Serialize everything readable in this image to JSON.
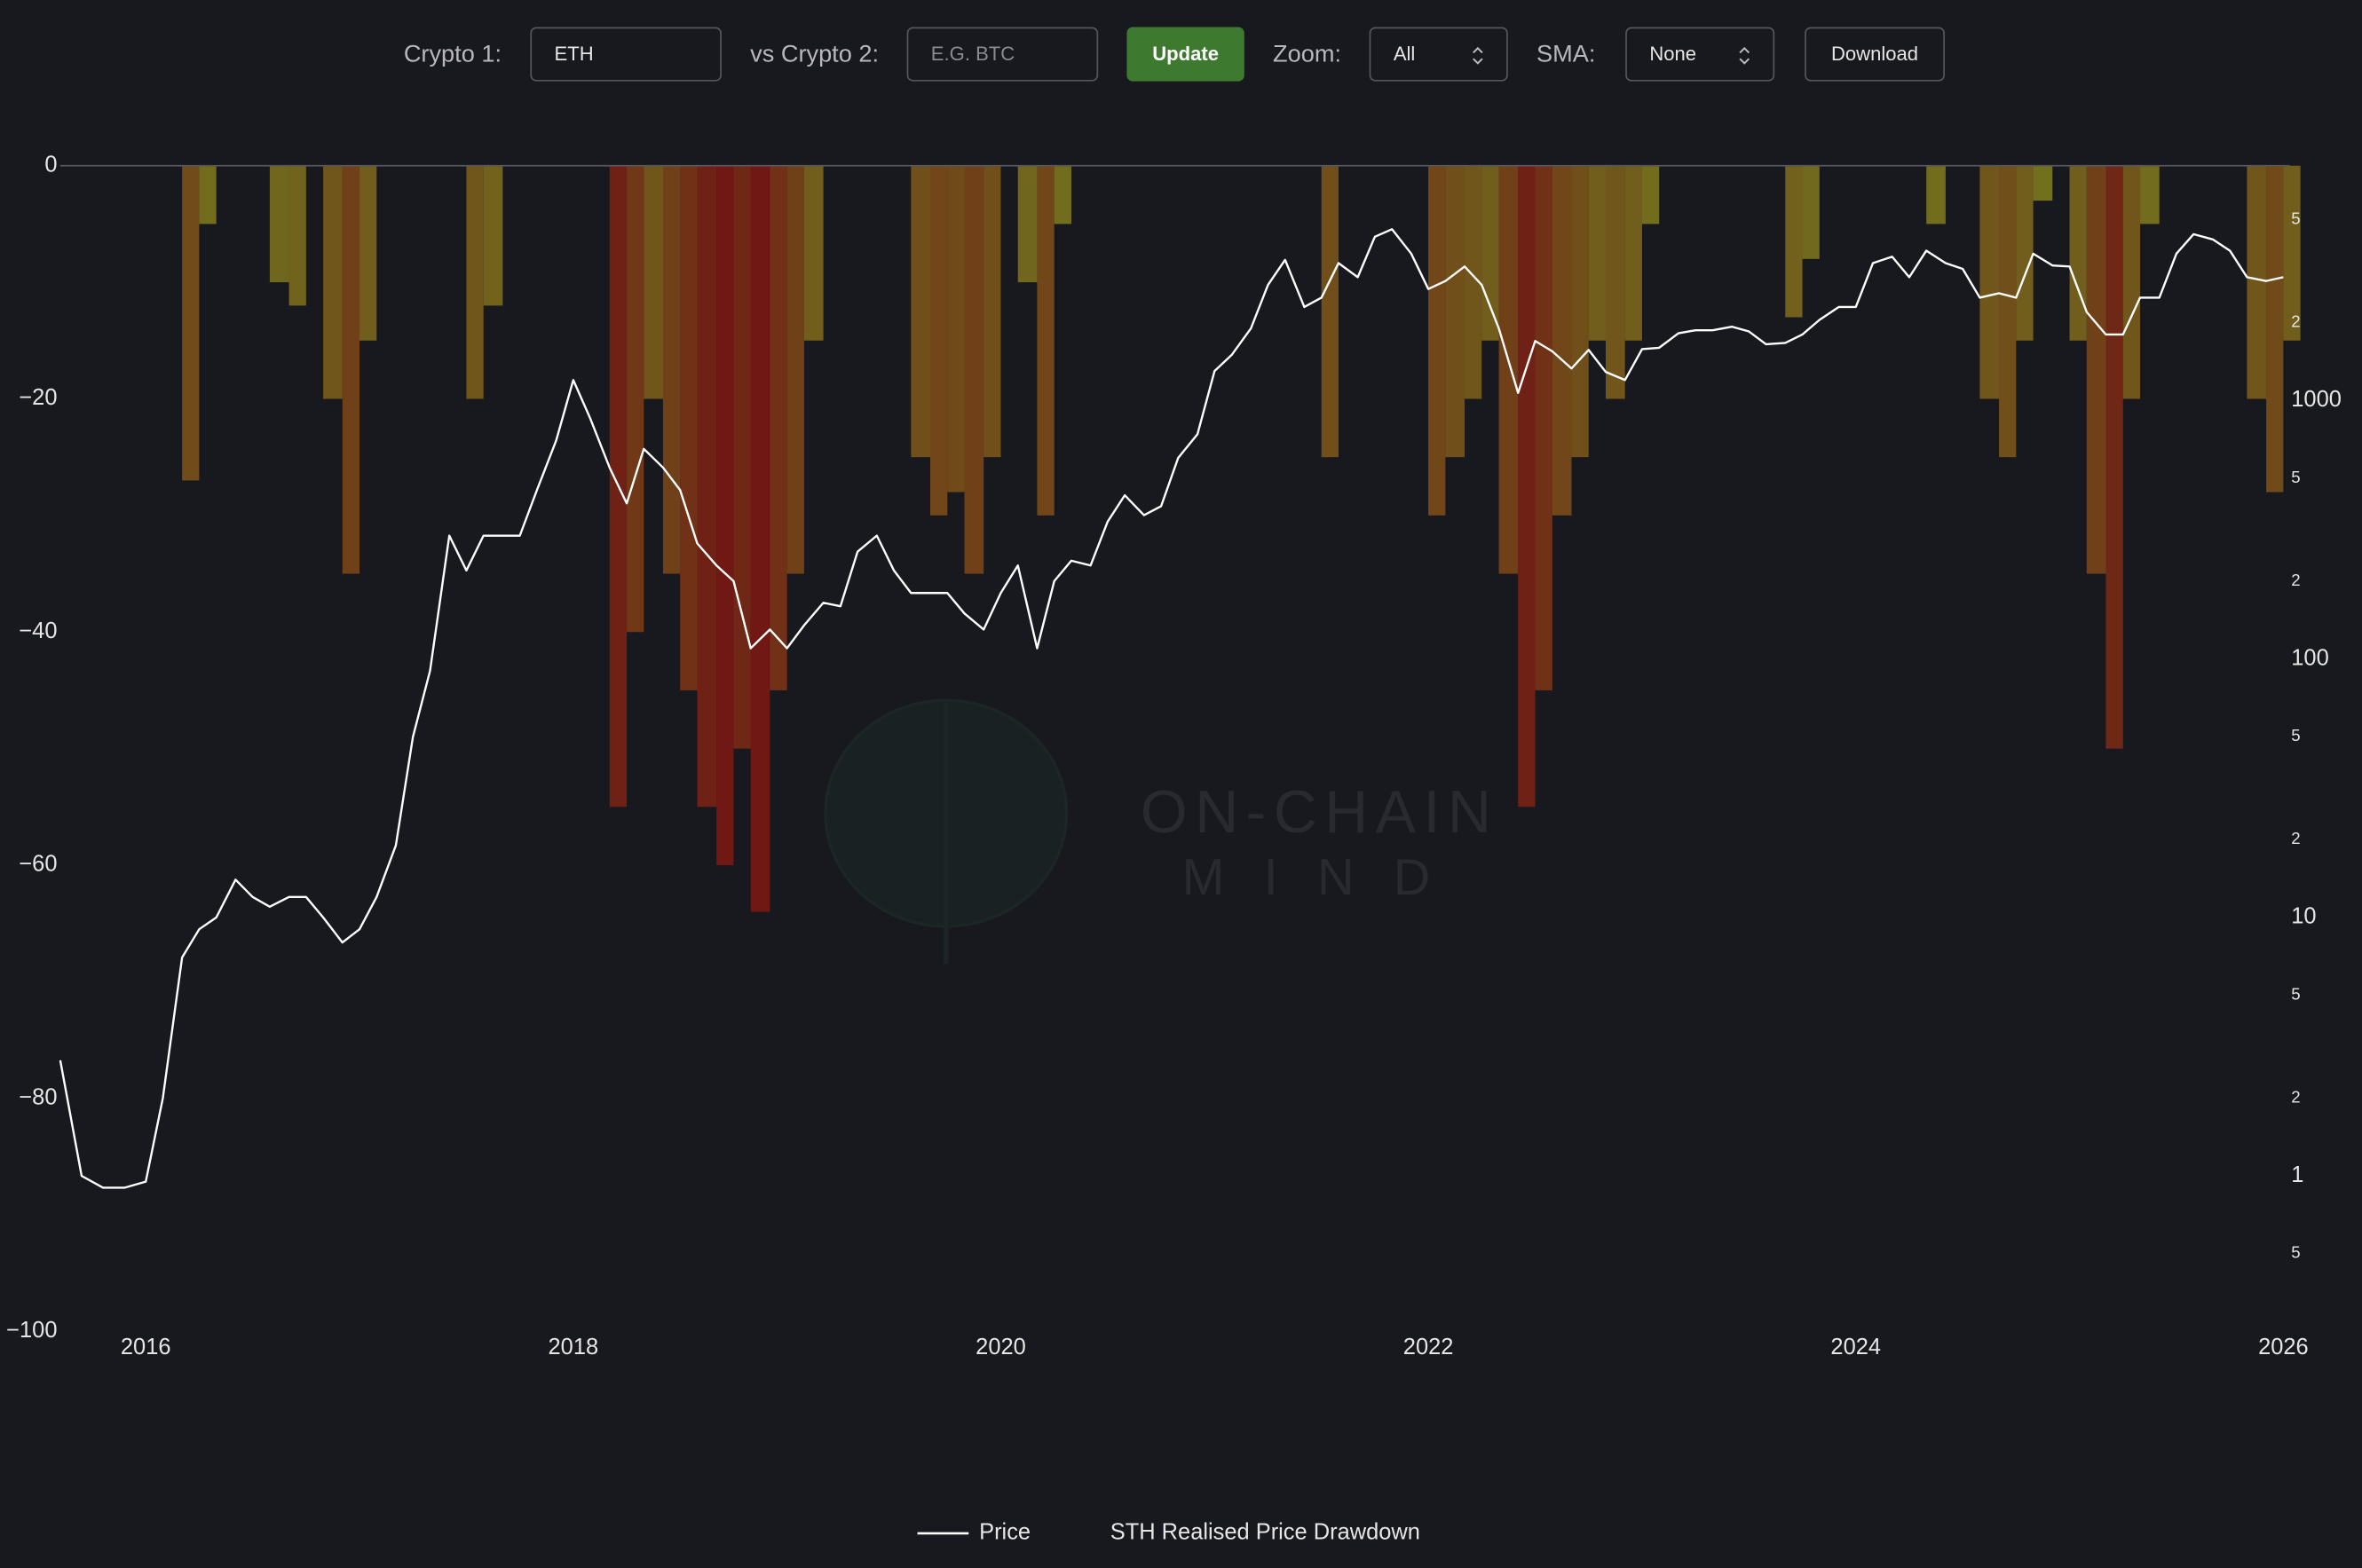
{
  "controls": {
    "crypto1_label": "Crypto 1:",
    "crypto1_value": "ETH",
    "crypto2_label": "vs Crypto 2:",
    "crypto2_placeholder": "E.G. BTC",
    "update_button": "Update",
    "zoom_label": "Zoom:",
    "zoom_value": "All",
    "sma_label": "SMA:",
    "sma_value": "None",
    "download_button": "Download"
  },
  "chart_data": {
    "type": "combo",
    "watermark": [
      "ON-CHAIN",
      "MIND"
    ],
    "x": [
      2015.6,
      2015.7,
      2015.8,
      2015.9,
      2016.0,
      2016.08,
      2016.17,
      2016.25,
      2016.33,
      2016.42,
      2016.5,
      2016.58,
      2016.67,
      2016.75,
      2016.83,
      2016.92,
      2017.0,
      2017.08,
      2017.17,
      2017.25,
      2017.33,
      2017.42,
      2017.5,
      2017.58,
      2017.67,
      2017.75,
      2017.83,
      2017.92,
      2018.0,
      2018.08,
      2018.17,
      2018.25,
      2018.33,
      2018.42,
      2018.5,
      2018.58,
      2018.67,
      2018.75,
      2018.83,
      2018.92,
      2019.0,
      2019.08,
      2019.17,
      2019.25,
      2019.33,
      2019.42,
      2019.5,
      2019.58,
      2019.67,
      2019.75,
      2019.83,
      2019.92,
      2020.0,
      2020.08,
      2020.17,
      2020.25,
      2020.33,
      2020.42,
      2020.5,
      2020.58,
      2020.67,
      2020.75,
      2020.83,
      2020.92,
      2021.0,
      2021.08,
      2021.17,
      2021.25,
      2021.33,
      2021.42,
      2021.5,
      2021.58,
      2021.67,
      2021.75,
      2021.83,
      2021.92,
      2022.0,
      2022.08,
      2022.17,
      2022.25,
      2022.33,
      2022.42,
      2022.5,
      2022.58,
      2022.67,
      2022.75,
      2022.83,
      2022.92,
      2023.0,
      2023.08,
      2023.17,
      2023.25,
      2023.33,
      2023.42,
      2023.5,
      2023.58,
      2023.67,
      2023.75,
      2023.83,
      2023.92,
      2024.0,
      2024.08,
      2024.17,
      2024.25,
      2024.33,
      2024.42,
      2024.5,
      2024.58,
      2024.67,
      2024.75,
      2024.83,
      2024.92,
      2025.0,
      2025.08,
      2025.17,
      2025.25,
      2025.33,
      2025.42,
      2025.5,
      2025.58,
      2025.67,
      2025.75,
      2025.83,
      2025.92,
      2026.0
    ],
    "series": [
      {
        "name": "Price",
        "type": "line",
        "axis": "y2",
        "color": "#ffffff",
        "values": [
          2.8,
          1.0,
          0.9,
          0.9,
          0.95,
          2.0,
          7,
          9,
          10,
          14,
          12,
          11,
          12,
          12,
          10,
          8,
          9,
          12,
          19,
          50,
          90,
          300,
          220,
          300,
          300,
          300,
          450,
          700,
          1200,
          850,
          550,
          400,
          650,
          550,
          450,
          280,
          230,
          200,
          110,
          130,
          110,
          135,
          165,
          160,
          260,
          300,
          220,
          180,
          180,
          180,
          150,
          130,
          180,
          230,
          110,
          200,
          240,
          230,
          340,
          430,
          360,
          390,
          600,
          740,
          1300,
          1500,
          1900,
          2800,
          3500,
          2300,
          2500,
          3400,
          3000,
          4300,
          4600,
          3700,
          2700,
          2900,
          3300,
          2800,
          1900,
          1070,
          1700,
          1550,
          1330,
          1570,
          1290,
          1200,
          1580,
          1600,
          1820,
          1870,
          1870,
          1930,
          1850,
          1650,
          1670,
          1800,
          2050,
          2300,
          2300,
          3400,
          3600,
          3000,
          3800,
          3400,
          3230,
          2500,
          2600,
          2500,
          3700,
          3330,
          3300,
          2200,
          1800,
          1800,
          2500,
          2500,
          3700,
          4400,
          4200,
          3800,
          3000,
          2900,
          3000
        ]
      },
      {
        "name": "STH Realised Price Drawdown",
        "type": "bar",
        "color": [
          "#8f941f",
          "#8e1a12"
        ],
        "values": [
          0,
          0,
          0,
          0,
          0,
          0,
          -27,
          -5,
          0,
          0,
          0,
          -10,
          -12,
          0,
          -20,
          -35,
          -15,
          0,
          0,
          0,
          0,
          0,
          -20,
          -12,
          0,
          0,
          0,
          0,
          0,
          0,
          -55,
          -40,
          -20,
          -35,
          -45,
          -55,
          -60,
          -50,
          -64,
          -45,
          -35,
          -15,
          0,
          0,
          0,
          0,
          0,
          -25,
          -30,
          -28,
          -35,
          -25,
          0,
          -10,
          -30,
          -5,
          0,
          0,
          0,
          0,
          0,
          0,
          0,
          0,
          0,
          0,
          0,
          0,
          0,
          0,
          -25,
          0,
          0,
          0,
          0,
          0,
          -30,
          -25,
          -20,
          -15,
          -35,
          -55,
          -45,
          -30,
          -25,
          -15,
          -20,
          -15,
          -5,
          0,
          0,
          0,
          0,
          0,
          0,
          0,
          -13,
          -8,
          0,
          0,
          0,
          0,
          0,
          0,
          -5,
          0,
          0,
          -20,
          -25,
          -15,
          -3,
          0,
          -15,
          -35,
          -50,
          -20,
          -5,
          0,
          0,
          0,
          0,
          0,
          -20,
          -28,
          -15
        ]
      }
    ],
    "xlim": [
      2015.6,
      2026.03
    ],
    "xticks": [
      2016,
      2018,
      2020,
      2022,
      2024,
      2026
    ],
    "ylim": [
      -100,
      0
    ],
    "yticks": [
      {
        "value": -100,
        "label": "−100"
      },
      {
        "value": -80,
        "label": "−80"
      },
      {
        "value": -60,
        "label": "−60"
      },
      {
        "value": -40,
        "label": "−40"
      },
      {
        "value": -20,
        "label": "−20"
      },
      0
    ],
    "y2lim": [
      0.25,
      8100
    ],
    "y2_log": true,
    "y2ticks": [
      {
        "value": 0.5,
        "label": "5"
      },
      1,
      2,
      5,
      10,
      {
        "value": 20,
        "label": "2"
      },
      {
        "value": 50,
        "label": "5"
      },
      100,
      {
        "value": 200,
        "label": "2"
      },
      {
        "value": 500,
        "label": "5"
      },
      1000,
      {
        "value": 2000,
        "label": "2"
      },
      {
        "value": 5000,
        "label": "5"
      }
    ],
    "legend": "bottom"
  }
}
